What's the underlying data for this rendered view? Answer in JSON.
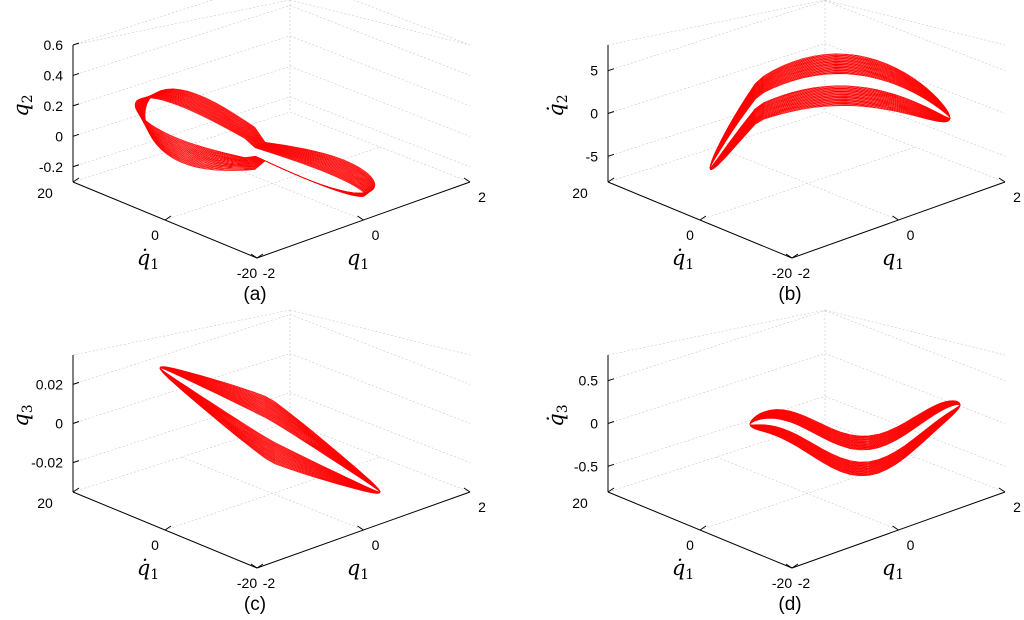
{
  "chart_data": [
    {
      "type": "line",
      "subtype": "3d-phase-portrait",
      "caption": "(a)",
      "xlabel": "q1",
      "ylabel": "q̇1",
      "zlabel": "q2",
      "x_ticks": [
        "-2",
        "0",
        "2"
      ],
      "y_ticks": [
        "20",
        "0",
        "-20"
      ],
      "z_ticks": [
        "0.6",
        "0.4",
        "0.2",
        "0",
        "-0.2"
      ],
      "xlim": [
        -2,
        2
      ],
      "ylim": [
        -20,
        20
      ],
      "zlim": [
        -0.3,
        0.6
      ],
      "grid": true,
      "series_color": "#ff0000"
    },
    {
      "type": "line",
      "subtype": "3d-phase-portrait",
      "caption": "(b)",
      "xlabel": "q1",
      "ylabel": "q̇1",
      "zlabel": "q̇2",
      "x_ticks": [
        "-2",
        "0",
        "2"
      ],
      "y_ticks": [
        "20",
        "0",
        "-20"
      ],
      "z_ticks": [
        "5",
        "0",
        "-5"
      ],
      "xlim": [
        -2,
        2
      ],
      "ylim": [
        -20,
        20
      ],
      "zlim": [
        -8,
        8
      ],
      "grid": true,
      "series_color": "#ff0000"
    },
    {
      "type": "line",
      "subtype": "3d-phase-portrait",
      "caption": "(c)",
      "xlabel": "q1",
      "ylabel": "q̇1",
      "zlabel": "q3",
      "x_ticks": [
        "-2",
        "0",
        "2"
      ],
      "y_ticks": [
        "20",
        "0",
        "-20"
      ],
      "z_ticks": [
        "0.02",
        "0",
        "-0.02"
      ],
      "xlim": [
        -2,
        2
      ],
      "ylim": [
        -20,
        20
      ],
      "zlim": [
        -0.035,
        0.035
      ],
      "grid": true,
      "series_color": "#ff0000"
    },
    {
      "type": "line",
      "subtype": "3d-phase-portrait",
      "caption": "(d)",
      "xlabel": "q1",
      "ylabel": "q̇1",
      "zlabel": "q̇3",
      "x_ticks": [
        "-2",
        "0",
        "2"
      ],
      "y_ticks": [
        "20",
        "0",
        "-20"
      ],
      "z_ticks": [
        "0.5",
        "0",
        "-0.5"
      ],
      "xlim": [
        -2,
        2
      ],
      "ylim": [
        -20,
        20
      ],
      "zlim": [
        -0.8,
        0.8
      ],
      "grid": true,
      "series_color": "#ff0000"
    }
  ]
}
